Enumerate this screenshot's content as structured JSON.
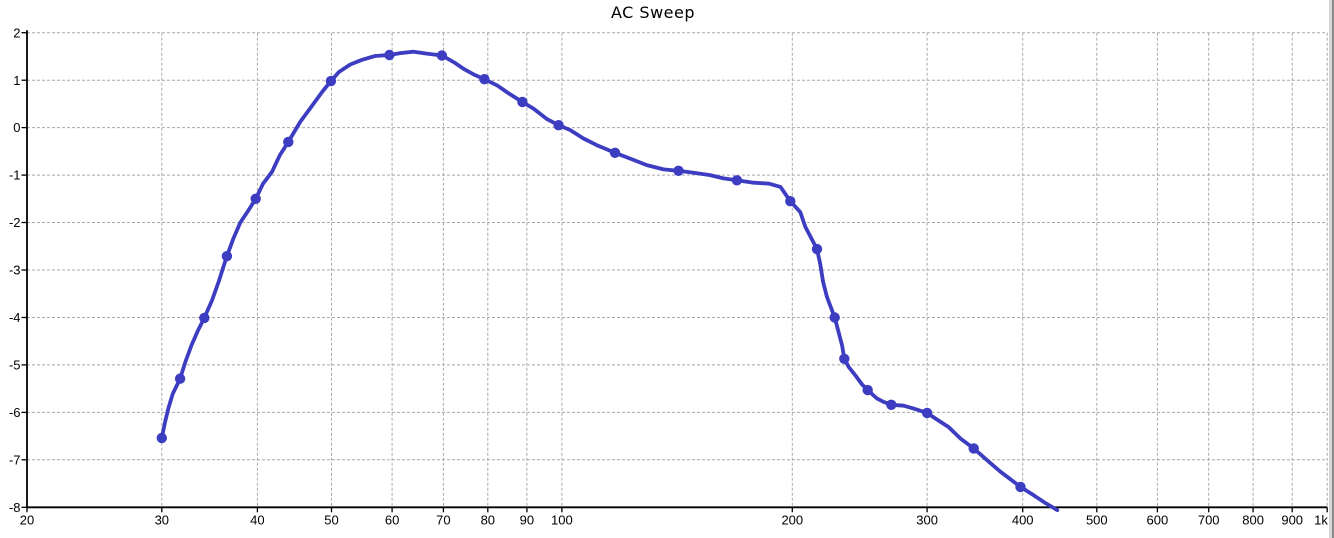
{
  "title": "AC Sweep",
  "chart_data": {
    "type": "line",
    "title": "AC Sweep",
    "x_scale": "log",
    "xlabel": "",
    "ylabel": "",
    "xlim": [
      20,
      1000
    ],
    "ylim": [
      -8,
      2
    ],
    "grid": "dashed",
    "legend": "none",
    "x_ticks": [
      {
        "value": 20,
        "label": "20"
      },
      {
        "value": 30,
        "label": "30"
      },
      {
        "value": 40,
        "label": "40"
      },
      {
        "value": 50,
        "label": "50"
      },
      {
        "value": 60,
        "label": "60"
      },
      {
        "value": 70,
        "label": "70"
      },
      {
        "value": 80,
        "label": "80"
      },
      {
        "value": 90,
        "label": "90"
      },
      {
        "value": 100,
        "label": "100"
      },
      {
        "value": 200,
        "label": "200"
      },
      {
        "value": 300,
        "label": "300"
      },
      {
        "value": 400,
        "label": "400"
      },
      {
        "value": 500,
        "label": "500"
      },
      {
        "value": 600,
        "label": "600"
      },
      {
        "value": 700,
        "label": "700"
      },
      {
        "value": 800,
        "label": "800"
      },
      {
        "value": 900,
        "label": "900"
      },
      {
        "value": 1000,
        "label": "1k"
      }
    ],
    "y_ticks": [
      {
        "value": 2,
        "label": "2"
      },
      {
        "value": 1,
        "label": "1"
      },
      {
        "value": 0,
        "label": "0"
      },
      {
        "value": -1,
        "label": "-1"
      },
      {
        "value": -2,
        "label": "-2"
      },
      {
        "value": -3,
        "label": "-3"
      },
      {
        "value": -4,
        "label": "-4"
      },
      {
        "value": -5,
        "label": "-5"
      },
      {
        "value": -6,
        "label": "-6"
      },
      {
        "value": -7,
        "label": "-7"
      },
      {
        "value": -8,
        "label": "-8"
      }
    ],
    "colors": {
      "line": "#3d3dc2",
      "marker": "#3d3dc2",
      "grid": "#a9a9a9",
      "axis": "#000000",
      "tick_label": "#000000",
      "title": "#000000",
      "background": "#ffffff",
      "window_border": "#8c8c8c"
    },
    "series": [
      {
        "marker": "circle",
        "points": [
          [
            30.0,
            -6.54,
            1
          ],
          [
            30.3,
            -6.2,
            0
          ],
          [
            30.6,
            -5.92,
            0
          ],
          [
            31.0,
            -5.61,
            0
          ],
          [
            31.7,
            -5.29,
            1
          ],
          [
            32.2,
            -4.94,
            0
          ],
          [
            32.8,
            -4.59,
            0
          ],
          [
            33.4,
            -4.3,
            0
          ],
          [
            34.1,
            -4.01,
            1
          ],
          [
            34.9,
            -3.64,
            0
          ],
          [
            35.6,
            -3.25,
            0
          ],
          [
            36.1,
            -2.94,
            0
          ],
          [
            36.5,
            -2.71,
            1
          ],
          [
            37.2,
            -2.34,
            0
          ],
          [
            38.0,
            -2.0,
            0
          ],
          [
            38.8,
            -1.78,
            0
          ],
          [
            39.8,
            -1.5,
            1
          ],
          [
            40.7,
            -1.18,
            0
          ],
          [
            41.8,
            -0.93,
            0
          ],
          [
            42.8,
            -0.58,
            0
          ],
          [
            43.9,
            -0.3,
            1
          ],
          [
            45.5,
            0.12,
            0
          ],
          [
            47.4,
            0.51,
            0
          ],
          [
            48.6,
            0.75,
            0
          ],
          [
            49.9,
            0.98,
            1
          ],
          [
            51.1,
            1.17,
            0
          ],
          [
            52.9,
            1.33,
            0
          ],
          [
            54.8,
            1.43,
            0
          ],
          [
            57.0,
            1.51,
            0
          ],
          [
            59.5,
            1.53,
            1
          ],
          [
            61.5,
            1.57,
            0
          ],
          [
            64.0,
            1.6,
            0
          ],
          [
            66.6,
            1.56,
            0
          ],
          [
            69.7,
            1.52,
            1
          ],
          [
            72.2,
            1.38,
            0
          ],
          [
            74.4,
            1.24,
            0
          ],
          [
            76.7,
            1.12,
            0
          ],
          [
            79.2,
            1.02,
            1
          ],
          [
            82.3,
            0.89,
            0
          ],
          [
            85.2,
            0.72,
            0
          ],
          [
            88.8,
            0.54,
            1
          ],
          [
            91.8,
            0.4,
            0
          ],
          [
            95.6,
            0.18,
            0
          ],
          [
            99.0,
            0.05,
            1
          ],
          [
            102.5,
            -0.05,
            0
          ],
          [
            106.7,
            -0.23,
            0
          ],
          [
            111.1,
            -0.37,
            0
          ],
          [
            117.3,
            -0.53,
            1
          ],
          [
            122.7,
            -0.65,
            0
          ],
          [
            129.1,
            -0.79,
            0
          ],
          [
            135.8,
            -0.88,
            0
          ],
          [
            142.0,
            -0.91,
            1
          ],
          [
            148.6,
            -0.95,
            0
          ],
          [
            156.2,
            -1.0,
            0
          ],
          [
            162.6,
            -1.07,
            0
          ],
          [
            169.3,
            -1.11,
            1
          ],
          [
            178.0,
            -1.16,
            0
          ],
          [
            186.3,
            -1.18,
            0
          ],
          [
            193.0,
            -1.25,
            0
          ],
          [
            198.8,
            -1.55,
            1
          ],
          [
            204.9,
            -1.78,
            0
          ],
          [
            208.0,
            -2.09,
            0
          ],
          [
            215.4,
            -2.56,
            1
          ],
          [
            217.6,
            -2.88,
            0
          ],
          [
            219.4,
            -3.25,
            0
          ],
          [
            222.0,
            -3.57,
            0
          ],
          [
            227.2,
            -4.0,
            1
          ],
          [
            229.2,
            -4.23,
            0
          ],
          [
            232.3,
            -4.59,
            0
          ],
          [
            233.9,
            -4.87,
            1
          ],
          [
            236.9,
            -5.04,
            0
          ],
          [
            241.8,
            -5.22,
            0
          ],
          [
            246.7,
            -5.41,
            0
          ],
          [
            250.9,
            -5.53,
            1
          ],
          [
            258.1,
            -5.71,
            0
          ],
          [
            263.3,
            -5.78,
            0
          ],
          [
            269.4,
            -5.84,
            1
          ],
          [
            279.6,
            -5.86,
            0
          ],
          [
            288.2,
            -5.92,
            0
          ],
          [
            300.0,
            -6.01,
            1
          ],
          [
            307.6,
            -6.13,
            0
          ],
          [
            320.2,
            -6.31,
            0
          ],
          [
            331.7,
            -6.55,
            0
          ],
          [
            345.2,
            -6.76,
            1
          ],
          [
            359.5,
            -7.01,
            0
          ],
          [
            374.1,
            -7.25,
            0
          ],
          [
            385.6,
            -7.41,
            0
          ],
          [
            397.4,
            -7.57,
            1
          ],
          [
            413.7,
            -7.75,
            0
          ],
          [
            426.4,
            -7.89,
            0
          ],
          [
            443.9,
            -8.06,
            0
          ]
        ]
      }
    ]
  }
}
